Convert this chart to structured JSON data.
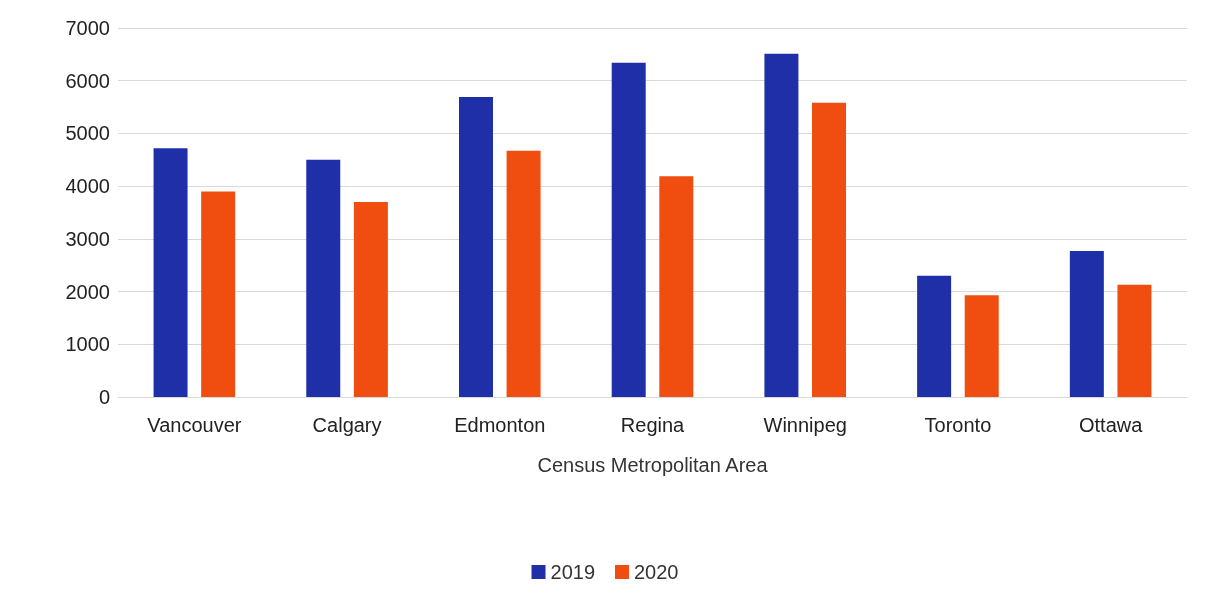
{
  "chart_data": {
    "type": "bar",
    "xlabel": "Census Metropolitan Area",
    "categories": [
      "Vancouver",
      "Calgary",
      "Edmonton",
      "Regina",
      "Winnipeg",
      "Toronto",
      "Ottawa"
    ],
    "series": [
      {
        "name": "2019",
        "color": "#1f2fa8",
        "values": [
          4720,
          4500,
          5690,
          6340,
          6510,
          2300,
          2770
        ]
      },
      {
        "name": "2020",
        "color": "#f04e10",
        "values": [
          3900,
          3700,
          4670,
          4190,
          5580,
          1930,
          2130
        ]
      }
    ],
    "ylim": [
      0,
      7000
    ],
    "yticks": [
      0,
      1000,
      2000,
      3000,
      4000,
      5000,
      6000,
      7000
    ],
    "grid": "y",
    "legend": "bottom"
  }
}
